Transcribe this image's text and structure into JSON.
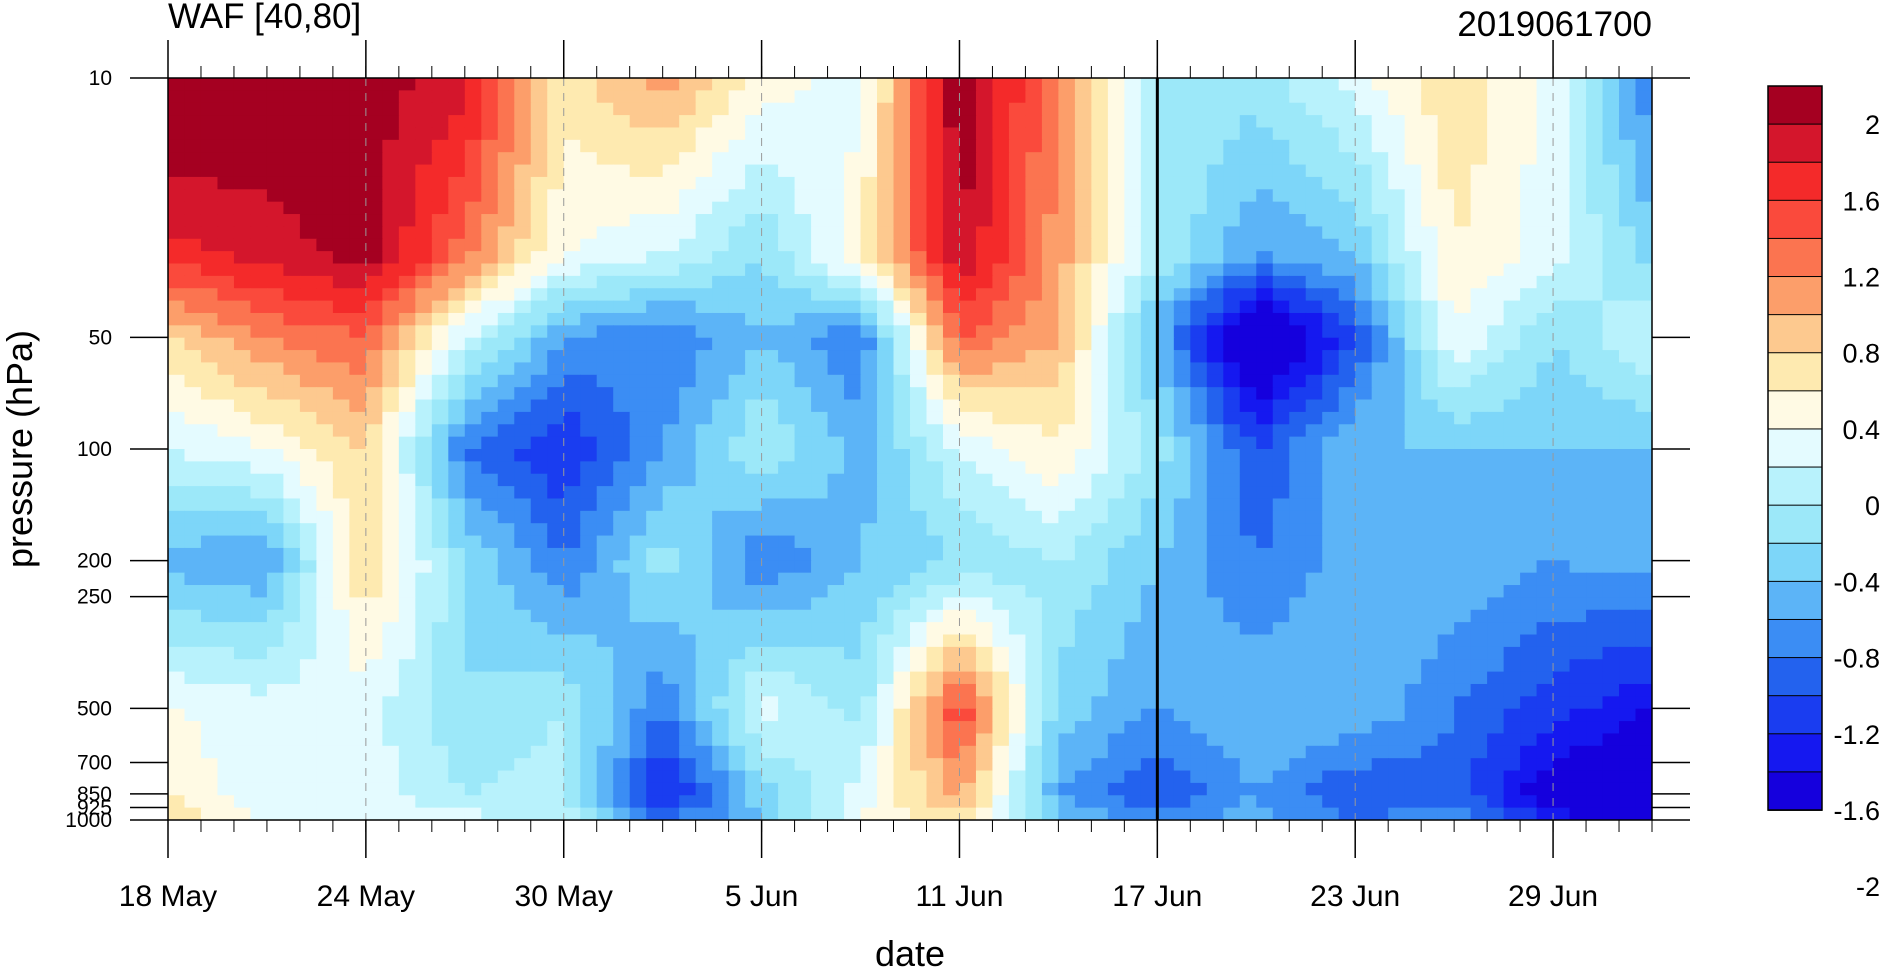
{
  "chart_data": {
    "type": "heatmap",
    "subtype": "filled-contour",
    "title_left": "WAF [40,80]",
    "title_right": "2019061700",
    "xlabel": "date",
    "ylabel": "pressure (hPa)",
    "x_tick_labels": [
      "18 May",
      "24 May",
      "30 May",
      "5 Jun",
      "11 Jun",
      "17 Jun",
      "23 Jun",
      "29 Jun"
    ],
    "x_tick_days": [
      0,
      6,
      12,
      18,
      24,
      30,
      36,
      42
    ],
    "x_range_days": [
      0,
      45
    ],
    "y_tick_labels": [
      "10",
      "50",
      "100",
      "200",
      "250",
      "500",
      "700",
      "850",
      "925",
      "1000"
    ],
    "y_tick_values": [
      10,
      50,
      100,
      200,
      250,
      500,
      700,
      850,
      925,
      1000
    ],
    "y_range": [
      10,
      1000
    ],
    "y_axis_reversed": true,
    "vertical_marker_day": 30,
    "colorbar_labels": [
      "2",
      "1.6",
      "1.2",
      "0.8",
      "0.4",
      "0",
      "-0.4",
      "-0.8",
      "-1.2",
      "-1.6",
      "-2"
    ],
    "colorbar_colors": [
      "#a50021",
      "#d4162c",
      "#f42a2a",
      "#fa4a3c",
      "#fb7450",
      "#fc9e6a",
      "#fdc98f",
      "#feeab0",
      "#fffae4",
      "#e4fbff",
      "#b8f2fc",
      "#9ce8f9",
      "#7dd6f9",
      "#5cb4f7",
      "#3b8df4",
      "#2362ee",
      "#1a3df0",
      "#1518f0",
      "#1500dd"
    ],
    "series": [
      {
        "name": "grid",
        "x_days": [
          0,
          3,
          6,
          9,
          12,
          15,
          18,
          21,
          24,
          27,
          30,
          33,
          36,
          39,
          42,
          45
        ],
        "y_levels": [
          10,
          30,
          50,
          100,
          200,
          500,
          850,
          1000
        ]
      }
    ],
    "z": [
      [
        2.4,
        2.2,
        2.1,
        1.9,
        0.7,
        1.1,
        0.5,
        0.3,
        2.2,
        1.2,
        0.0,
        -0.1,
        0.3,
        0.8,
        0.3,
        -0.8
      ],
      [
        1.7,
        1.9,
        2.1,
        1.3,
        0.4,
        0.2,
        -0.2,
        0.6,
        2.0,
        1.1,
        0.0,
        -0.6,
        -0.4,
        0.6,
        0.3,
        -0.3
      ],
      [
        0.8,
        1.2,
        1.4,
        0.2,
        -0.6,
        -0.8,
        -0.4,
        -0.8,
        1.4,
        1.0,
        -0.5,
        -2.0,
        -1.0,
        0.4,
        -0.2,
        0.2
      ],
      [
        0.2,
        0.4,
        0.8,
        -0.8,
        -1.2,
        -0.6,
        0.0,
        -0.5,
        0.2,
        0.6,
        -0.1,
        -1.0,
        -0.4,
        -0.4,
        -0.4,
        -0.4
      ],
      [
        -0.5,
        -0.6,
        0.8,
        -0.2,
        -0.8,
        -0.1,
        -0.8,
        -0.4,
        -0.2,
        0.0,
        -0.4,
        -0.8,
        -0.5,
        -0.4,
        -0.6,
        -0.5
      ],
      [
        0.4,
        0.3,
        0.3,
        -0.2,
        0.0,
        -0.8,
        0.3,
        -0.1,
        1.6,
        -0.3,
        -0.6,
        -0.4,
        -0.4,
        -0.8,
        -1.1,
        -1.4
      ],
      [
        0.6,
        0.2,
        0.3,
        0.0,
        0.1,
        -1.3,
        -0.3,
        0.3,
        1.1,
        -0.6,
        -1.0,
        -0.6,
        -1.0,
        -0.9,
        -1.6,
        -1.8
      ],
      [
        0.9,
        0.3,
        0.4,
        0.3,
        0.1,
        -0.8,
        -0.4,
        0.4,
        0.7,
        -0.3,
        -0.7,
        -0.5,
        -0.8,
        -0.6,
        -1.2,
        -1.7
      ]
    ]
  }
}
